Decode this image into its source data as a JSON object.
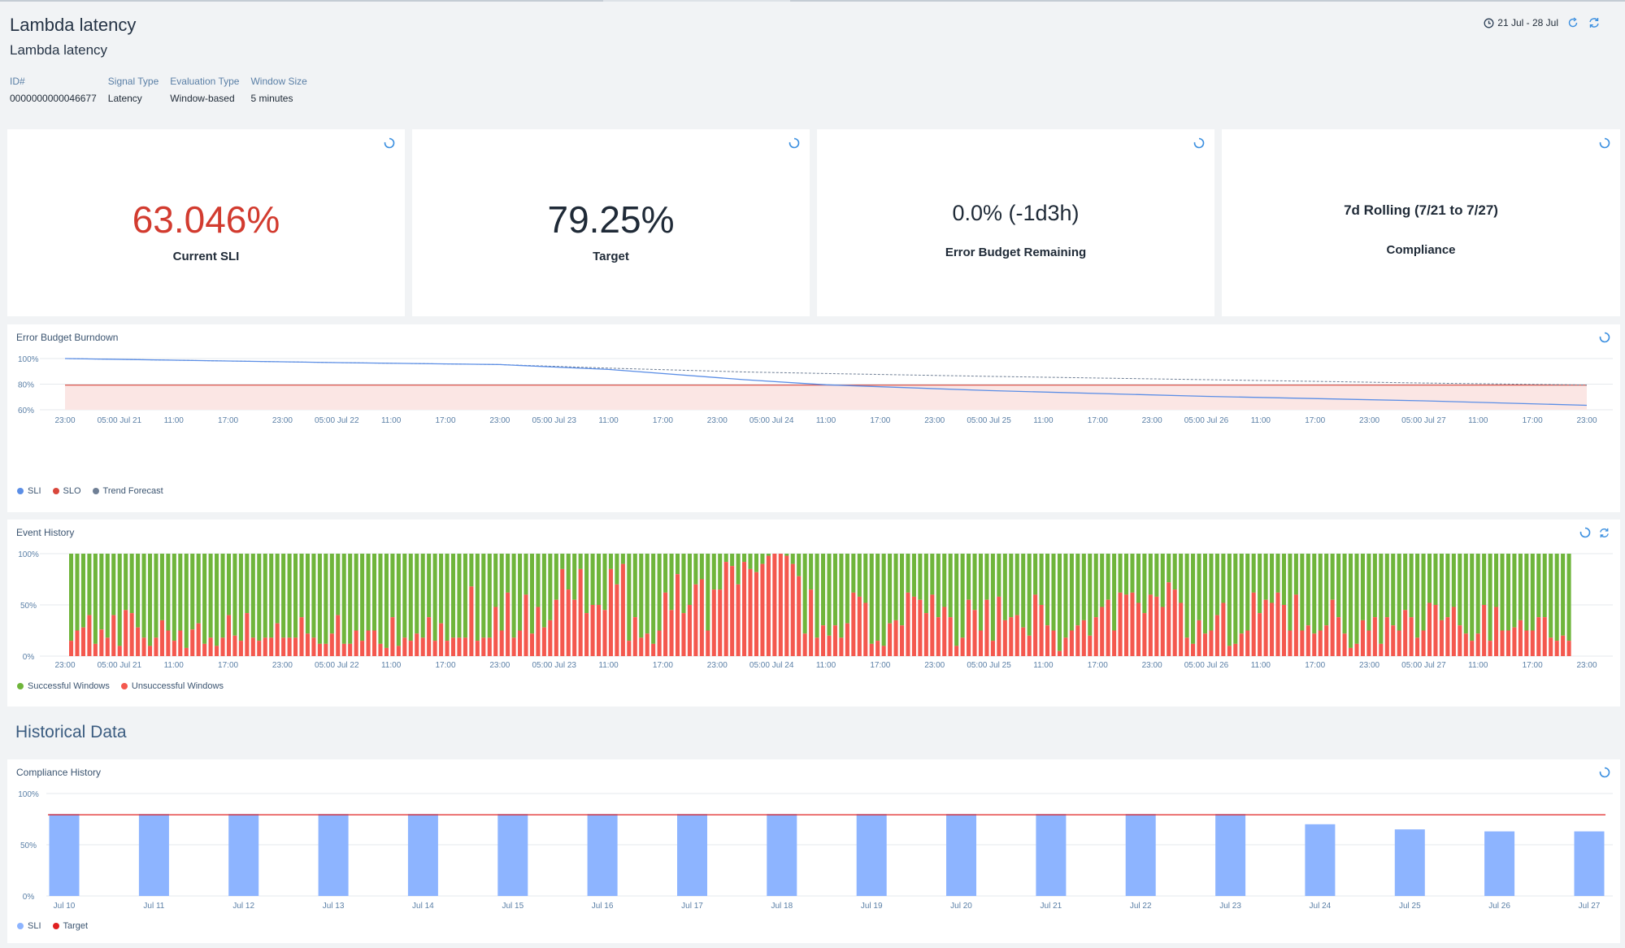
{
  "header": {
    "title": "Lambda latency",
    "subtitle": "Lambda latency",
    "date_range": "21 Jul - 28 Jul",
    "meta": [
      {
        "label": "ID#",
        "value": "0000000000046677"
      },
      {
        "label": "Signal Type",
        "value": "Latency"
      },
      {
        "label": "Evaluation Type",
        "value": "Window-based"
      },
      {
        "label": "Window Size",
        "value": "5 minutes"
      }
    ]
  },
  "kpis": [
    {
      "value": "63.046%",
      "label": "Current SLI",
      "color": "#d23b2f"
    },
    {
      "value": "79.25%",
      "label": "Target",
      "color": "#1f2a37"
    },
    {
      "value": "0.0% (-1d3h)",
      "label": "Error Budget Remaining",
      "color": "#1f2a37"
    },
    {
      "value": "7d Rolling (7/21 to 7/27)",
      "label": "Compliance",
      "color": "#1f2a37"
    }
  ],
  "colors": {
    "sli": "#5b8ee6",
    "slo": "#d9463b",
    "forecast": "#6f7f95",
    "success": "#6fb53b",
    "fail": "#f4584e",
    "compliance_bar": "#8db4ff",
    "slo_fill": "#fbe6e4",
    "accent": "#3b8fe0"
  },
  "burndown": {
    "title": "Error Budget Burndown",
    "y_ticks": [
      "100%",
      "80%",
      "60%"
    ],
    "x_ticks": [
      "23:00",
      "05:00 Jul 21",
      "11:00",
      "17:00",
      "23:00",
      "05:00 Jul 22",
      "11:00",
      "17:00",
      "23:00",
      "05:00 Jul 23",
      "11:00",
      "17:00",
      "23:00",
      "05:00 Jul 24",
      "11:00",
      "17:00",
      "23:00",
      "05:00 Jul 25",
      "11:00",
      "17:00",
      "23:00",
      "05:00 Jul 26",
      "11:00",
      "17:00",
      "23:00",
      "05:00 Jul 27",
      "11:00",
      "17:00",
      "23:00"
    ],
    "legend": [
      "SLI",
      "SLO",
      "Trend Forecast"
    ]
  },
  "events": {
    "title": "Event History",
    "y_ticks": [
      "100%",
      "50%",
      "0%"
    ],
    "x_ticks": [
      "23:00",
      "05:00 Jul 21",
      "11:00",
      "17:00",
      "23:00",
      "05:00 Jul 22",
      "11:00",
      "17:00",
      "23:00",
      "05:00 Jul 23",
      "11:00",
      "17:00",
      "23:00",
      "05:00 Jul 24",
      "11:00",
      "17:00",
      "23:00",
      "05:00 Jul 25",
      "11:00",
      "17:00",
      "23:00",
      "05:00 Jul 26",
      "11:00",
      "17:00",
      "23:00",
      "05:00 Jul 27",
      "11:00",
      "17:00",
      "23:00"
    ],
    "legend": [
      "Successful Windows",
      "Unsuccessful Windows"
    ]
  },
  "historical": {
    "section_title": "Historical Data",
    "title": "Compliance History",
    "y_ticks": [
      "100%",
      "50%",
      "0%"
    ],
    "legend": [
      "SLI",
      "Target"
    ]
  },
  "chart_data": [
    {
      "type": "line",
      "title": "Error Budget Burndown",
      "xlabel": "",
      "ylabel": "",
      "ylim": [
        60,
        100
      ],
      "x": [
        "Jul 20 23:00",
        "Jul 22 05:00",
        "Jul 22 23:00",
        "Jul 23 11:00",
        "Jul 24 02:00",
        "Jul 24 11:00",
        "Jul 25 05:00",
        "Jul 26 05:00",
        "Jul 27 05:00",
        "Jul 27 23:00"
      ],
      "series": [
        {
          "name": "SLI",
          "values": [
            100,
            96.8,
            95.3,
            91.5,
            83.5,
            79.5,
            75,
            70.5,
            67,
            63.5
          ]
        },
        {
          "name": "SLO",
          "values": [
            79.25,
            79.25,
            79.25,
            79.25,
            79.25,
            79.25,
            79.25,
            79.25,
            79.25,
            79.25
          ]
        },
        {
          "name": "Trend Forecast",
          "values": [
            100,
            96.8,
            95.3,
            92.5,
            89.5,
            88.3,
            86.1,
            83.5,
            80.9,
            79.3
          ]
        }
      ],
      "grid": true,
      "legend": "bottom-left"
    },
    {
      "type": "bar",
      "stacked": true,
      "title": "Event History",
      "xlabel": "",
      "ylabel": "",
      "ylim": [
        0,
        100
      ],
      "x_range": [
        "Jul 20 23:00",
        "Jul 27 23:00"
      ],
      "series": [
        {
          "name": "Unsuccessful Windows",
          "values": [
            15,
            25,
            28,
            40,
            12,
            26,
            18,
            40,
            10,
            45,
            42,
            28,
            18,
            10,
            18,
            35,
            25,
            15,
            25,
            8,
            26,
            32,
            12,
            18,
            10,
            18,
            40,
            20,
            15,
            42,
            18,
            15,
            18,
            18,
            32,
            18,
            18,
            18,
            38,
            22,
            18,
            12,
            12,
            22,
            40,
            12,
            12,
            25,
            15,
            25,
            25,
            12,
            8,
            38,
            10,
            18,
            15,
            22,
            18,
            38,
            15,
            32,
            15,
            18,
            18,
            18,
            68,
            15,
            18,
            18,
            48,
            25,
            62,
            18,
            25,
            60,
            22,
            48,
            28,
            35,
            55,
            85,
            65,
            55,
            85,
            42,
            50,
            50,
            45,
            85,
            70,
            90,
            15,
            38,
            18,
            22,
            12,
            25,
            62,
            45,
            80,
            42,
            50,
            70,
            75,
            25,
            65,
            65,
            92,
            88,
            70,
            92,
            85,
            82,
            90,
            98,
            100,
            100,
            98,
            90,
            78,
            22,
            65,
            18,
            30,
            20,
            30,
            18,
            32,
            62,
            58,
            52,
            12,
            15,
            10,
            32,
            35,
            30,
            62,
            58,
            55,
            42,
            60,
            38,
            48,
            38,
            10,
            18,
            55,
            45,
            25,
            55,
            15,
            58,
            35,
            38,
            40,
            28,
            20,
            60,
            50,
            30,
            25,
            5,
            18,
            25,
            30,
            35,
            20,
            38,
            48,
            55,
            25,
            62,
            60,
            62,
            52,
            42,
            60,
            58,
            48,
            72,
            65,
            52,
            18,
            12,
            35,
            22,
            25,
            40,
            52,
            10,
            12,
            22,
            25,
            62,
            42,
            55,
            52,
            62,
            50,
            25,
            60,
            25,
            30,
            22,
            25,
            30,
            55,
            38,
            22,
            8,
            12,
            35,
            25,
            38,
            12,
            38,
            30,
            25,
            45,
            38,
            18,
            25,
            52,
            50,
            35,
            38,
            48,
            30,
            22,
            15,
            22,
            50,
            15,
            48,
            25,
            25,
            28,
            35,
            25,
            25,
            38,
            38,
            18,
            15,
            20,
            15
          ]
        },
        {
          "name": "Successful Windows",
          "values_rule": "100 minus Unsuccessful Windows"
        }
      ],
      "grid": true,
      "legend": "bottom-left"
    },
    {
      "type": "bar",
      "title": "Compliance History",
      "xlabel": "",
      "ylabel": "",
      "ylim": [
        0,
        100
      ],
      "categories": [
        "Jul 10",
        "Jul 11",
        "Jul 12",
        "Jul 13",
        "Jul 14",
        "Jul 15",
        "Jul 16",
        "Jul 17",
        "Jul 18",
        "Jul 19",
        "Jul 20",
        "Jul 21",
        "Jul 22",
        "Jul 23",
        "Jul 24",
        "Jul 25",
        "Jul 26",
        "Jul 27"
      ],
      "series": [
        {
          "name": "SLI",
          "values": [
            80,
            80,
            80,
            80,
            80,
            80,
            80,
            80,
            80,
            80,
            80,
            80,
            80,
            80,
            70,
            65,
            63,
            63
          ]
        },
        {
          "name": "Target",
          "values": [
            79.25,
            79.25,
            79.25,
            79.25,
            79.25,
            79.25,
            79.25,
            79.25,
            79.25,
            79.25,
            79.25,
            79.25,
            79.25,
            79.25,
            79.25,
            79.25,
            79.25,
            79.25
          ]
        }
      ],
      "grid": true,
      "legend": "bottom-left"
    }
  ]
}
